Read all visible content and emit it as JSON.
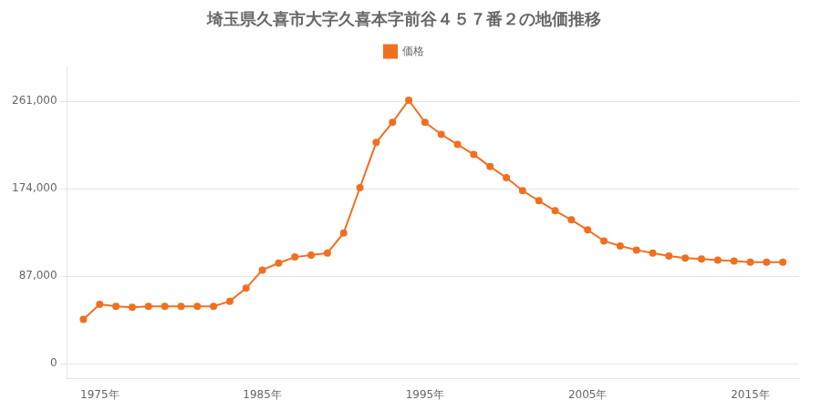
{
  "chart_data": {
    "type": "line",
    "title": "埼玉県久喜市大字久喜本字前谷４５７番２の地価推移",
    "x": [
      1974,
      1975,
      1976,
      1977,
      1978,
      1979,
      1980,
      1981,
      1982,
      1983,
      1984,
      1985,
      1986,
      1987,
      1988,
      1989,
      1990,
      1991,
      1992,
      1993,
      1994,
      1995,
      1996,
      1997,
      1998,
      1999,
      2000,
      2001,
      2002,
      2003,
      2004,
      2005,
      2006,
      2007,
      2008,
      2009,
      2010,
      2011,
      2012,
      2013,
      2014,
      2015,
      2016,
      2017
    ],
    "series": [
      {
        "name": "価格",
        "color": "#f07020",
        "marker": "circle",
        "values": [
          44000,
          59000,
          57000,
          56000,
          57000,
          57000,
          57000,
          57000,
          57000,
          62000,
          75000,
          93000,
          100000,
          106000,
          108000,
          110000,
          130000,
          175000,
          220000,
          240000,
          262000,
          240000,
          228000,
          218000,
          208000,
          196000,
          185000,
          172000,
          162000,
          152000,
          143000,
          133000,
          122000,
          117000,
          113000,
          110000,
          107000,
          105000,
          104000,
          103000,
          102000,
          101000,
          101000,
          101000
        ]
      }
    ],
    "xlim": [
      1973,
      2018
    ],
    "xticks": [
      {
        "value": 1975,
        "label": "1975年"
      },
      {
        "value": 1985,
        "label": "1985年"
      },
      {
        "value": 1995,
        "label": "1995年"
      },
      {
        "value": 2005,
        "label": "2005年"
      },
      {
        "value": 2015,
        "label": "2015年"
      }
    ],
    "ylim": [
      -15000,
      295000
    ],
    "yticks": [
      0,
      {
        "value": 87000,
        "label": "87,000"
      },
      {
        "value": 174000,
        "label": "174,000"
      },
      {
        "value": 261000,
        "label": "261,000"
      }
    ],
    "grid": "y",
    "legend": "top"
  }
}
